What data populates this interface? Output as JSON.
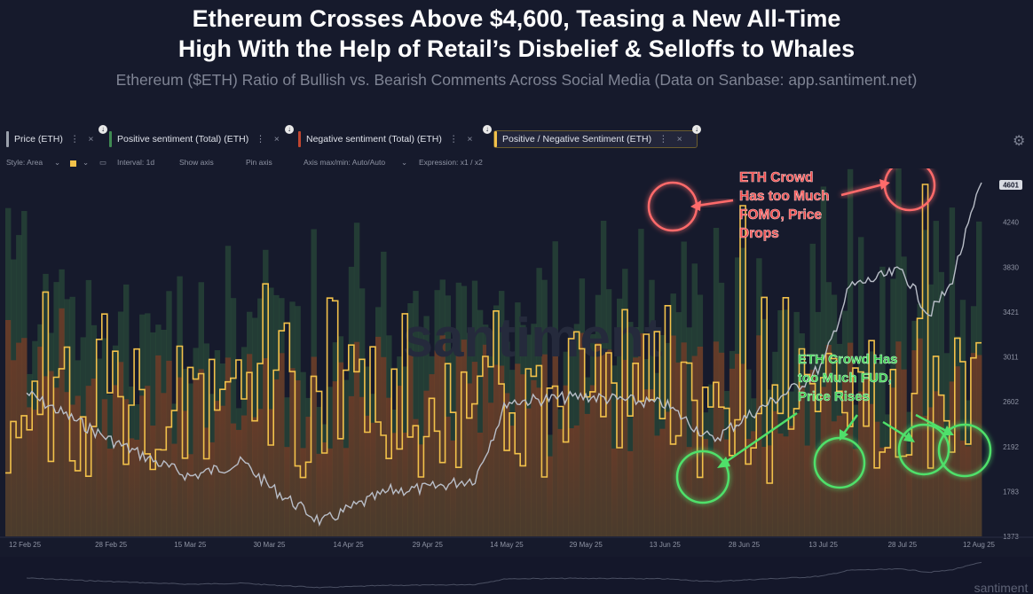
{
  "title_line1": "Ethereum Crosses Above $4,600, Teasing a New All-Time",
  "title_line2": "High With the Help of Retail’s Disbelief & Selloffs to Whales",
  "subtitle": "Ethereum ($ETH) Ratio of Bullish vs. Bearish Comments Across Social Media (Data on Sanbase: app.santiment.net)",
  "metrics": [
    {
      "label": "Price (ETH)",
      "color": "#9aa0ab"
    },
    {
      "label": "Positive sentiment (Total) (ETH)",
      "color": "#3f8a52"
    },
    {
      "label": "Negative sentiment (Total) (ETH)",
      "color": "#c0452f"
    },
    {
      "label": "Positive / Negative Sentiment (ETH)",
      "color": "#f2c14a"
    }
  ],
  "settings": {
    "style": "Style: Area",
    "interval": "Interval: 1d",
    "show_axis": "Show axis",
    "pin_axis": "Pin axis",
    "axis_maxmin": "Axis max/min: Auto/Auto",
    "expression": "Expression: x1 / x2"
  },
  "watermark": "santiment",
  "annotations": {
    "fomo": "ETH Crowd Has too Much FOMO, Price Drops",
    "fud": "ETH Crowd Has too Much FUD, Price Rises"
  },
  "chart_data": {
    "type": "line",
    "x_tick_labels": [
      "12 Feb 25",
      "28 Feb 25",
      "15 Mar 25",
      "30 Mar 25",
      "14 Apr 25",
      "29 Apr 25",
      "14 May 25",
      "29 May 25",
      "13 Jun 25",
      "28 Jun 25",
      "13 Jul 25",
      "28 Jul 25",
      "12 Aug 25"
    ],
    "y_tick_labels": [
      1373,
      1783,
      2192,
      2602,
      3011,
      3421,
      3830,
      4240,
      4601
    ],
    "ylim": [
      1373,
      4650
    ],
    "current_price_label": "4601",
    "price_series": [
      {
        "date": "12 Feb 25",
        "value": 2680
      },
      {
        "date": "28 Feb 25",
        "value": 2250
      },
      {
        "date": "10 Mar 25",
        "value": 2020
      },
      {
        "date": "15 Mar 25",
        "value": 1920
      },
      {
        "date": "25 Mar 25",
        "value": 2050
      },
      {
        "date": "30 Mar 25",
        "value": 1830
      },
      {
        "date": "09 Apr 25",
        "value": 1500
      },
      {
        "date": "14 Apr 25",
        "value": 1620
      },
      {
        "date": "22 Apr 25",
        "value": 1790
      },
      {
        "date": "29 Apr 25",
        "value": 1810
      },
      {
        "date": "08 May 25",
        "value": 1900
      },
      {
        "date": "14 May 25",
        "value": 2600
      },
      {
        "date": "29 May 25",
        "value": 2650
      },
      {
        "date": "13 Jun 25",
        "value": 2580
      },
      {
        "date": "22 Jun 25",
        "value": 2250
      },
      {
        "date": "28 Jun 25",
        "value": 2450
      },
      {
        "date": "10 Jul 25",
        "value": 2800
      },
      {
        "date": "13 Jul 25",
        "value": 2950
      },
      {
        "date": "18 Jul 25",
        "value": 3650
      },
      {
        "date": "28 Jul 25",
        "value": 3800
      },
      {
        "date": "02 Aug 25",
        "value": 3400
      },
      {
        "date": "06 Aug 25",
        "value": 3650
      },
      {
        "date": "12 Aug 25",
        "value": 4601
      }
    ]
  }
}
